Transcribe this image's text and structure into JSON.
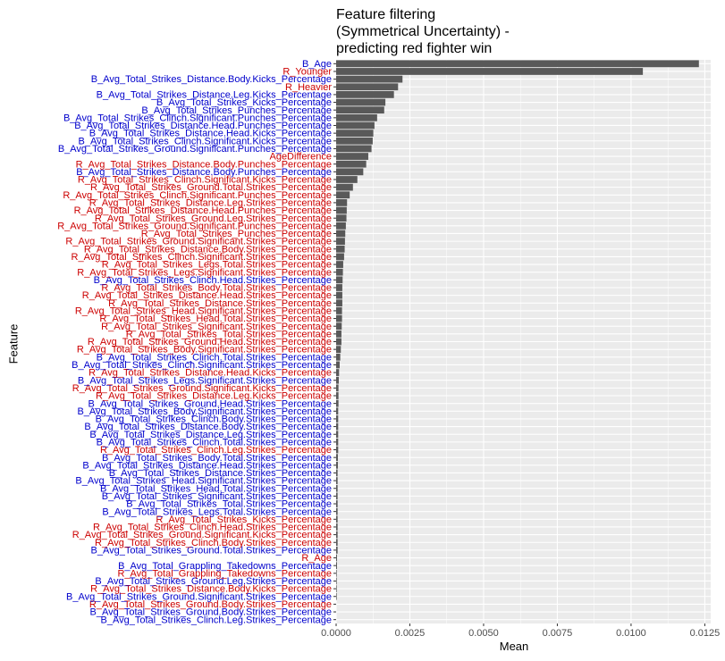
{
  "chart_data": {
    "type": "bar",
    "orientation": "horizontal",
    "title": [
      "Feature filtering",
      "(Symmetrical Uncertainty) -",
      "predicting red fighter win"
    ],
    "xlabel": "Mean",
    "ylabel": "Feature",
    "xlim": [
      0,
      0.0127
    ],
    "xticks": [
      "0.0000",
      "0.0025",
      "0.0050",
      "0.0075",
      "0.0100",
      "0.0125"
    ],
    "xtick_values": [
      0,
      0.0025,
      0.005,
      0.0075,
      0.01,
      0.0125
    ],
    "grid": true,
    "colors": {
      "blue": "#0000cc",
      "red": "#cc0000",
      "bar": "#595959",
      "panel": "#ebebeb"
    },
    "categories": [
      "B_Avg_Total_Strikes_Clinch.Leg.Strikes_Percentage",
      "B_Avg_Total_Strikes_Ground.Body.Strikes_Percentage",
      "R_Avg_Total_Strikes_Ground.Body.Strikes_Percentage",
      "B_Avg_Total_Strikes_Ground.Significant.Strikes_Percentage",
      "R_Avg_Total_Strikes_Distance.Body.Kicks_Percentage",
      "B_Avg_Total_Strikes_Ground.Leg.Strikes_Percentage",
      "R_Avg_Total_Grappling_Takedowns_Percentage",
      "B_Avg_Total_Grappling_Takedowns_Percentage",
      "R_Age",
      "B_Avg_Total_Strikes_Ground.Total.Strikes_Percentage",
      "R_Avg_Total_Strikes_Clinch.Body.Strikes_Percentage",
      "R_Avg_Total_Strikes_Ground.Significant.Kicks_Percentage",
      "R_Avg_Total_Strikes_Clinch.Head.Strikes_Percentage",
      "R_Avg_Total_Strikes_Kicks_Percentage",
      "B_Avg_Total_Strikes_Legs.Total.Strikes_Percentage",
      "B_Avg_Total_Strikes_Total.Strikes_Percentage",
      "B_Avg_Total_Strikes_Significant.Strikes_Percentage",
      "B_Avg_Total_Strikes_Head.Total.Strikes_Percentage",
      "B_Avg_Total_Strikes_Head.Significant.Strikes_Percentage",
      "B_Avg_Total_Strikes_Distance.Strikes_Percentage",
      "B_Avg_Total_Strikes_Distance.Head.Strikes_Percentage",
      "B_Avg_Total_Strikes_Body.Total.Strikes_Percentage",
      "R_Avg_Total_Strikes_Clinch.Leg.Strikes_Percentage",
      "B_Avg_Total_Strikes_Clinch.Total.Strikes_Percentage",
      "B_Avg_Total_Strikes_Distance.Leg.Strikes_Percentage",
      "B_Avg_Total_Strikes_Distance.Body.Strikes_Percentage",
      "B_Avg_Total_Strikes_Clinch.Body.Strikes_Percentage",
      "B_Avg_Total_Strikes_Body.Significant.Strikes_Percentage",
      "B_Avg_Total_Strikes_Ground.Head.Strikes_Percentage",
      "R_Avg_Total_Strikes_Distance.Leg.Kicks_Percentage",
      "R_Avg_Total_Strikes_Ground.Significant.Kicks_Percentage",
      "B_Avg_Total_Strikes_Legs.Significant.Strikes_Percentage",
      "R_Avg_Total_Strikes_Distance.Head.Kicks_Percentage",
      "B_Avg_Total_Strikes_Clinch.Significant.Strikes_Percentage",
      "B_Avg_Total_Strikes_Clinch.Total.Strikes_Percentage",
      "R_Avg_Total_Strikes_Body.Significant.Strikes_Percentage",
      "R_Avg_Total_Strikes_Ground.Head.Strikes_Percentage",
      "R_Avg_Total_Strikes_Total.Strikes_Percentage",
      "R_Avg_Total_Strikes_Significant.Strikes_Percentage",
      "R_Avg_Total_Strikes_Head.Total.Strikes_Percentage",
      "R_Avg_Total_Strikes_Head.Significant.Strikes_Percentage",
      "R_Avg_Total_Strikes_Distance.Strikes_Percentage",
      "R_Avg_Total_Strikes_Distance.Head.Strikes_Percentage",
      "R_Avg_Total_Strikes_Body.Total.Strikes_Percentage",
      "B_Avg_Total_Strikes_Clinch.Head.Strikes_Percentage",
      "R_Avg_Total_Strikes_Legs.Significant.Strikes_Percentage",
      "R_Avg_Total_Strikes_Legs.Total.Strikes_Percentage",
      "R_Avg_Total_Strikes_Clinch.Significant.Strikes_Percentage",
      "R_Avg_Total_Strikes_Distance.Body.Strikes_Percentage",
      "R_Avg_Total_Strikes_Ground.Significant.Strikes_Percentage",
      "R_Avg_Total_Strikes_Punches_Percentage",
      "R_Avg_Total_Strikes_Ground.Significant.Punches_Percentage",
      "R_Avg_Total_Strikes_Ground.Leg.Strikes_Percentage",
      "R_Avg_Total_Strikes_Distance.Head.Punches_Percentage",
      "R_Avg_Total_Strikes_Distance.Leg.Strikes_Percentage",
      "R_Avg_Total_Strikes_Clinch.Significant.Punches_Percentage",
      "R_Avg_Total_Strikes_Ground.Total.Strikes_Percentage",
      "R_Avg_Total_Strikes_Clinch.Significant.Kicks_Percentage",
      "B_Avg_Total_Strikes_Distance.Body.Punches_Percentage",
      "R_Avg_Total_Strikes_Distance.Body.Punches_Percentage",
      "AgeDifference",
      "B_Avg_Total_Strikes_Ground.Significant.Punches_Percentage",
      "B_Avg_Total_Strikes_Clinch.Significant.Kicks_Percentage",
      "B_Avg_Total_Strikes_Distance.Head.Kicks_Percentage",
      "B_Avg_Total_Strikes_Distance.Head.Punches_Percentage",
      "B_Avg_Total_Strikes_Clinch.Significant.Punches_Percentage",
      "B_Avg_Total_Strikes_Punches_Percentage",
      "B_Avg_Total_Strikes_Kicks_Percentage",
      "B_Avg_Total_Strikes_Distance.Leg.Kicks_Percentage",
      "R_Heavier",
      "B_Avg_Total_Strikes_Distance.Body.Kicks_Percentage",
      "R_Younger",
      "B_Age"
    ],
    "values": [
      0.0,
      0.0,
      0.0,
      2e-05,
      2e-05,
      2e-05,
      2e-05,
      3e-05,
      3e-05,
      5e-05,
      5e-05,
      5e-05,
      5e-05,
      5e-05,
      5e-05,
      5e-05,
      5e-05,
      5e-05,
      5e-05,
      5e-05,
      6e-05,
      6e-05,
      7e-05,
      7e-05,
      7e-05,
      7e-05,
      7e-05,
      7e-05,
      8e-05,
      8e-05,
      8e-05,
      9e-05,
      0.0001,
      0.00012,
      0.00014,
      0.00016,
      0.00018,
      0.00018,
      0.00019,
      0.0002,
      0.0002,
      0.00021,
      0.00021,
      0.00021,
      0.00022,
      0.00023,
      0.00024,
      0.00027,
      0.00029,
      0.0003,
      0.00031,
      0.00033,
      0.00035,
      0.00036,
      0.00037,
      0.00046,
      0.00057,
      0.00072,
      0.00092,
      0.00102,
      0.00109,
      0.0012,
      0.00124,
      0.00126,
      0.0013,
      0.00139,
      0.00163,
      0.00167,
      0.00196,
      0.0021,
      0.00225,
      0.0104,
      0.0123
    ],
    "label_colors": [
      "blue",
      "blue",
      "red",
      "blue",
      "red",
      "blue",
      "red",
      "blue",
      "red",
      "blue",
      "red",
      "red",
      "red",
      "red",
      "blue",
      "blue",
      "blue",
      "blue",
      "blue",
      "blue",
      "blue",
      "blue",
      "red",
      "blue",
      "blue",
      "blue",
      "blue",
      "blue",
      "blue",
      "red",
      "red",
      "blue",
      "red",
      "blue",
      "blue",
      "red",
      "red",
      "red",
      "red",
      "red",
      "red",
      "red",
      "red",
      "red",
      "blue",
      "red",
      "red",
      "red",
      "red",
      "red",
      "red",
      "red",
      "red",
      "red",
      "red",
      "red",
      "red",
      "red",
      "blue",
      "red",
      "red",
      "blue",
      "blue",
      "blue",
      "blue",
      "blue",
      "blue",
      "blue",
      "blue",
      "red",
      "blue",
      "red",
      "blue"
    ]
  }
}
